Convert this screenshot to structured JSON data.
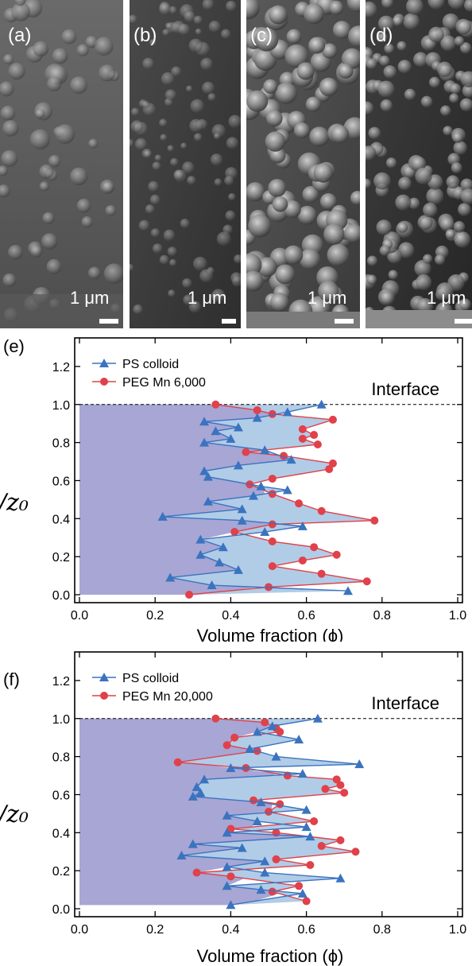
{
  "micrographs": [
    {
      "label": "(a)",
      "scale_text": "1 μm"
    },
    {
      "label": "(b)",
      "scale_text": "1 μm"
    },
    {
      "label": "(c)",
      "scale_text": "1 μm"
    },
    {
      "label": "(d)",
      "scale_text": "1 μm"
    }
  ],
  "colors": {
    "ps_line": "#3a73c0",
    "ps_fill": "#a9cdeb",
    "peg_line": "#e0414a",
    "peg_fill": "#f6b8b9",
    "base_fill": "#a7a6d4"
  },
  "chart_data": [
    {
      "panel_label": "(e)",
      "type": "line",
      "xlabel": "Volume fraction (ϕ)",
      "ylabel": "/z₀",
      "xlim": [
        0,
        1
      ],
      "ylim": [
        0,
        1.3
      ],
      "xticks": [
        "0.0",
        "0.2",
        "0.4",
        "0.6",
        "0.8",
        "1.0"
      ],
      "yticks": [
        "0.0",
        "0.2",
        "0.4",
        "0.6",
        "0.8",
        "1.0",
        "1.2"
      ],
      "interface_label": "Interface",
      "interface_y": 1.0,
      "series": [
        {
          "name": "PS colloid",
          "marker": "triangle",
          "points": [
            [
              0.64,
              1.0
            ],
            [
              0.55,
              0.96
            ],
            [
              0.47,
              0.93
            ],
            [
              0.33,
              0.91
            ],
            [
              0.42,
              0.88
            ],
            [
              0.36,
              0.86
            ],
            [
              0.4,
              0.82
            ],
            [
              0.33,
              0.8
            ],
            [
              0.49,
              0.76
            ],
            [
              0.56,
              0.71
            ],
            [
              0.42,
              0.68
            ],
            [
              0.33,
              0.65
            ],
            [
              0.34,
              0.62
            ],
            [
              0.48,
              0.57
            ],
            [
              0.55,
              0.55
            ],
            [
              0.46,
              0.52
            ],
            [
              0.34,
              0.49
            ],
            [
              0.43,
              0.45
            ],
            [
              0.22,
              0.41
            ],
            [
              0.43,
              0.39
            ],
            [
              0.59,
              0.36
            ],
            [
              0.49,
              0.33
            ],
            [
              0.32,
              0.29
            ],
            [
              0.38,
              0.25
            ],
            [
              0.32,
              0.21
            ],
            [
              0.37,
              0.17
            ],
            [
              0.42,
              0.13
            ],
            [
              0.24,
              0.09
            ],
            [
              0.35,
              0.05
            ],
            [
              0.71,
              0.02
            ]
          ]
        },
        {
          "name": "PEG Mn 6,000",
          "marker": "circle",
          "points": [
            [
              0.36,
              1.0
            ],
            [
              0.47,
              0.97
            ],
            [
              0.51,
              0.95
            ],
            [
              0.67,
              0.92
            ],
            [
              0.59,
              0.87
            ],
            [
              0.62,
              0.84
            ],
            [
              0.59,
              0.82
            ],
            [
              0.63,
              0.79
            ],
            [
              0.44,
              0.75
            ],
            [
              0.54,
              0.73
            ],
            [
              0.67,
              0.69
            ],
            [
              0.66,
              0.66
            ],
            [
              0.51,
              0.61
            ],
            [
              0.45,
              0.58
            ],
            [
              0.51,
              0.53
            ],
            [
              0.58,
              0.48
            ],
            [
              0.64,
              0.44
            ],
            [
              0.78,
              0.39
            ],
            [
              0.51,
              0.37
            ],
            [
              0.41,
              0.33
            ],
            [
              0.51,
              0.28
            ],
            [
              0.62,
              0.25
            ],
            [
              0.68,
              0.21
            ],
            [
              0.59,
              0.18
            ],
            [
              0.51,
              0.15
            ],
            [
              0.64,
              0.11
            ],
            [
              0.76,
              0.07
            ],
            [
              0.5,
              0.04
            ],
            [
              0.29,
              0.0
            ]
          ]
        }
      ]
    },
    {
      "panel_label": "(f)",
      "type": "line",
      "xlabel": "Volume fraction (ϕ)",
      "ylabel": "/z₀",
      "xlim": [
        0,
        1
      ],
      "ylim": [
        0,
        1.3
      ],
      "xticks": [
        "0.0",
        "0.2",
        "0.4",
        "0.6",
        "0.8",
        "1.0"
      ],
      "yticks": [
        "0.0",
        "0.2",
        "0.4",
        "0.6",
        "0.8",
        "1.0",
        "1.2"
      ],
      "interface_label": "Interface",
      "interface_y": 1.0,
      "series": [
        {
          "name": "PS colloid",
          "marker": "triangle",
          "points": [
            [
              0.63,
              1.0
            ],
            [
              0.51,
              0.96
            ],
            [
              0.47,
              0.93
            ],
            [
              0.58,
              0.89
            ],
            [
              0.45,
              0.84
            ],
            [
              0.52,
              0.8
            ],
            [
              0.74,
              0.76
            ],
            [
              0.4,
              0.74
            ],
            [
              0.59,
              0.71
            ],
            [
              0.33,
              0.68
            ],
            [
              0.31,
              0.64
            ],
            [
              0.32,
              0.61
            ],
            [
              0.3,
              0.59
            ],
            [
              0.48,
              0.56
            ],
            [
              0.6,
              0.52
            ],
            [
              0.39,
              0.49
            ],
            [
              0.47,
              0.46
            ],
            [
              0.6,
              0.43
            ],
            [
              0.39,
              0.4
            ],
            [
              0.61,
              0.38
            ],
            [
              0.3,
              0.34
            ],
            [
              0.43,
              0.32
            ],
            [
              0.27,
              0.28
            ],
            [
              0.49,
              0.25
            ],
            [
              0.39,
              0.22
            ],
            [
              0.49,
              0.19
            ],
            [
              0.69,
              0.16
            ],
            [
              0.39,
              0.12
            ],
            [
              0.48,
              0.1
            ],
            [
              0.59,
              0.08
            ],
            [
              0.4,
              0.02
            ]
          ]
        },
        {
          "name": "PEG Mn 20,000",
          "marker": "circle",
          "points": [
            [
              0.36,
              1.0
            ],
            [
              0.49,
              0.98
            ],
            [
              0.52,
              0.95
            ],
            [
              0.53,
              0.93
            ],
            [
              0.41,
              0.9
            ],
            [
              0.39,
              0.86
            ],
            [
              0.47,
              0.83
            ],
            [
              0.26,
              0.77
            ],
            [
              0.44,
              0.74
            ],
            [
              0.55,
              0.7
            ],
            [
              0.68,
              0.68
            ],
            [
              0.69,
              0.65
            ],
            [
              0.65,
              0.63
            ],
            [
              0.7,
              0.61
            ],
            [
              0.46,
              0.57
            ],
            [
              0.53,
              0.55
            ],
            [
              0.5,
              0.51
            ],
            [
              0.62,
              0.46
            ],
            [
              0.4,
              0.42
            ],
            [
              0.52,
              0.4
            ],
            [
              0.69,
              0.36
            ],
            [
              0.64,
              0.33
            ],
            [
              0.73,
              0.3
            ],
            [
              0.52,
              0.26
            ],
            [
              0.61,
              0.23
            ],
            [
              0.31,
              0.19
            ],
            [
              0.4,
              0.17
            ],
            [
              0.58,
              0.12
            ],
            [
              0.51,
              0.09
            ],
            [
              0.6,
              0.04
            ]
          ]
        }
      ]
    }
  ]
}
